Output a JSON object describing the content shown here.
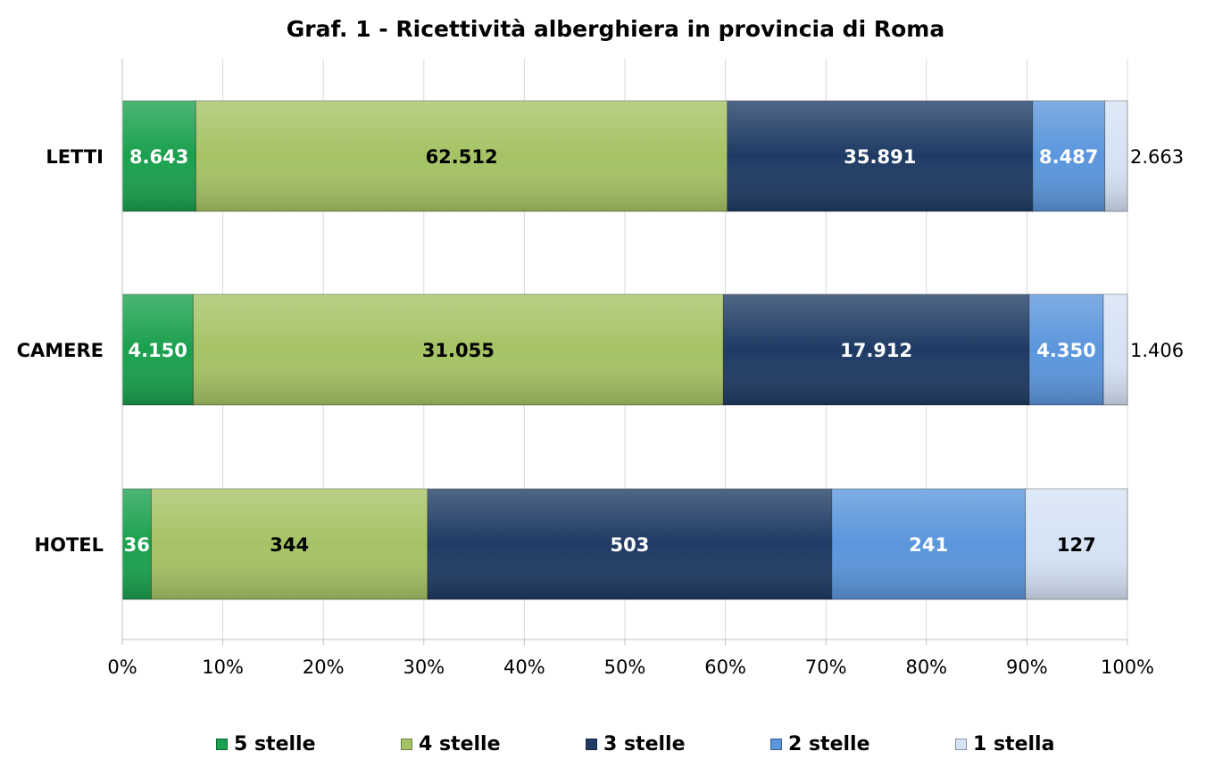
{
  "chart_data": {
    "type": "bar",
    "orientation": "horizontal",
    "stacking": "percent",
    "title": "Graf. 1 - Ricettività alberghiera in provincia di Roma",
    "categories": [
      "LETTI",
      "CAMERE",
      "HOTEL"
    ],
    "series": [
      {
        "name": "5 stelle",
        "color": "#1aa04e",
        "values": [
          8643,
          4150,
          36
        ],
        "labels": [
          "8.643",
          "4.150",
          "36"
        ],
        "label_color": "#ffffff"
      },
      {
        "name": "4 stelle",
        "color": "#a5c365",
        "values": [
          62512,
          31055,
          344
        ],
        "labels": [
          "62.512",
          "31.055",
          "344"
        ],
        "label_color": "#000000"
      },
      {
        "name": "3 stelle",
        "color": "#1f3b64",
        "values": [
          35891,
          17912,
          503
        ],
        "labels": [
          "35.891",
          "17.912",
          "503"
        ],
        "label_color": "#ffffff"
      },
      {
        "name": "2 stelle",
        "color": "#5b96dc",
        "values": [
          8487,
          4350,
          241
        ],
        "labels": [
          "8.487",
          "4.350",
          "241"
        ],
        "label_color": "#ffffff"
      },
      {
        "name": "1 stella",
        "color": "#d5e3f5",
        "values": [
          2663,
          1406,
          127
        ],
        "labels": [
          "2.663",
          "1.406",
          "127"
        ],
        "label_color": "#000000"
      }
    ],
    "x_ticks": [
      "0%",
      "10%",
      "20%",
      "30%",
      "40%",
      "50%",
      "60%",
      "70%",
      "80%",
      "90%",
      "100%"
    ],
    "xlim": [
      0,
      100
    ],
    "grid": true,
    "legend_position": "bottom"
  }
}
